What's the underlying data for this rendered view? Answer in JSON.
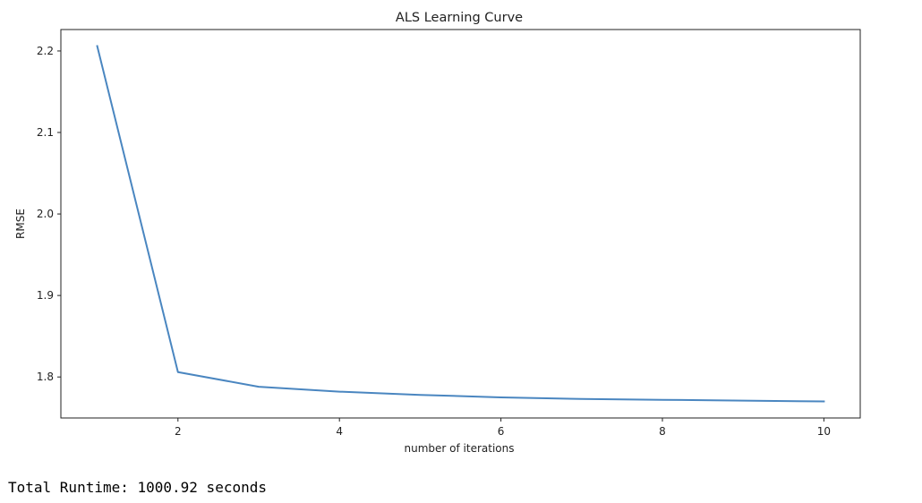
{
  "chart_data": {
    "type": "line",
    "title": "ALS Learning Curve",
    "xlabel": "number of iterations",
    "ylabel": "RMSE",
    "x": [
      1,
      2,
      3,
      4,
      5,
      6,
      7,
      8,
      9,
      10
    ],
    "series": [
      {
        "values": [
          2.206,
          1.806,
          1.788,
          1.782,
          1.778,
          1.775,
          1.773,
          1.772,
          1.771,
          1.77
        ],
        "color": "#4a86c0"
      }
    ],
    "xticks": [
      "2",
      "4",
      "6",
      "8",
      "10"
    ],
    "yticks": [
      "1.8",
      "1.9",
      "2.0",
      "2.1",
      "2.2"
    ],
    "xlim": [
      0.55,
      10.45
    ],
    "ylim": [
      1.7497,
      2.2263
    ],
    "grid": false,
    "legend": "none"
  },
  "output": {
    "runtime_text": "Total Runtime: 1000.92 seconds"
  }
}
